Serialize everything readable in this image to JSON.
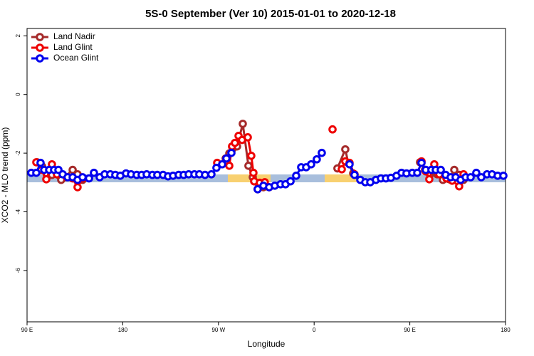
{
  "chart_data": {
    "type": "line",
    "title": "5S-0 September (Ver 10)   2015-01-01 to 2020-12-18",
    "x_label": "Longitude",
    "y_label": "XCO2 - MLO trend (ppm)",
    "xlim": [
      90,
      540
    ],
    "ylim": [
      -7.75,
      2.25
    ],
    "xticks": [
      {
        "value": 90,
        "label": "90 E"
      },
      180,
      {
        "value": 270,
        "label": "90 W"
      },
      {
        "value": 360,
        "label": "0"
      },
      {
        "value": 450,
        "label": "90 E"
      },
      {
        "value": 540,
        "label": "180"
      }
    ],
    "yticks": [
      2,
      0,
      -2,
      -4,
      -6
    ],
    "legend": "top-left",
    "series": [
      {
        "name": "Land Nadir",
        "color": "#a52a2a",
        "x": [
          99.4,
          104.1,
          108.7,
          113.4,
          122.1,
          132.9,
          137.5,
          142.2,
          null,
          276.8,
          280.2,
          283.5,
          287.5,
          292.9,
          298.2,
          302.3,
          306.9,
          312.3,
          null,
          381.9,
          389.3,
          392,
          396.7,
          null,
          459.6,
          464.3,
          469,
          475.7,
          481.1,
          487.1,
          491.8,
          496.4,
          500.5
        ],
        "values": [
          -2.31,
          -2.45,
          -2.74,
          -2.74,
          -2.91,
          -2.57,
          -2.72,
          -2.91,
          null,
          -2.18,
          -2.01,
          -1.84,
          -1.77,
          -1.0,
          -2.43,
          -2.82,
          -3.23,
          -3.16,
          null,
          -2.52,
          -1.87,
          -2.33,
          -2.69,
          null,
          -2.31,
          -2.57,
          -2.72,
          -2.72,
          -2.91,
          -2.89,
          -2.57,
          -2.74,
          -2.91
        ]
      },
      {
        "name": "Land Glint",
        "color": "#ee0000",
        "x": [
          98.7,
          103.4,
          108.1,
          113.4,
          118.1,
          127.5,
          132.9,
          137.5,
          142.2,
          null,
          268.8,
          280.2,
          282.8,
          285.5,
          288.9,
          292.2,
          297.6,
          300.9,
          302.9,
          303.6,
          308.9,
          313.6,
          317.7,
          null,
          377.3,
          null,
          386,
          389.3,
          393.3,
          398,
          null,
          461,
          465,
          468.3,
          473,
          477.7,
          484.4,
          489.8,
          496.4,
          500.5
        ],
        "values": [
          -2.31,
          -2.57,
          -2.89,
          -2.38,
          -2.72,
          -2.82,
          -2.86,
          -3.16,
          -2.86,
          null,
          -2.33,
          -2.43,
          -1.77,
          -1.65,
          -1.41,
          -1.55,
          -1.46,
          -2.09,
          -2.67,
          -2.96,
          -3.01,
          -2.99,
          -3.16,
          null,
          -1.19,
          null,
          -2.55,
          -2.28,
          -2.33,
          -2.72,
          null,
          -2.28,
          -2.62,
          -2.89,
          -2.38,
          -2.72,
          -2.86,
          -2.94,
          -3.13,
          -2.72
        ]
      },
      {
        "name": "Ocean Glint",
        "color": "#0000ee",
        "x": [
          94,
          98.7,
          102.7,
          106.1,
          110.8,
          115.4,
          119.5,
          123.5,
          128.2,
          132.9,
          137.5,
          142.2,
          148.3,
          152.9,
          158.3,
          163,
          168.3,
          173,
          177.7,
          183.1,
          187.8,
          193.1,
          197.8,
          202.5,
          207.9,
          212.5,
          217.9,
          222.6,
          227.3,
          232.6,
          237.3,
          242,
          247.4,
          252,
          257.4,
          263.4,
          268.1,
          273.5,
          277.5,
          282.2,
          null,
          306.9,
          312.3,
          317.7,
          323,
          328.4,
          333.1,
          337.8,
          343.1,
          347.8,
          352.5,
          357.2,
          362.5,
          367.2,
          null,
          393.3,
          398,
          403.4,
          408.1,
          412.8,
          418.1,
          422.8,
          427.5,
          432.2,
          437.5,
          442.2,
          446.9,
          452.3,
          457,
          461,
          465,
          470.3,
          474.4,
          479.1,
          483.7,
          488.4,
          493.1,
          497.8,
          502.5,
          507.2,
          512.5,
          517.2,
          522.6,
          527.3,
          532.6,
          538
        ],
        "values": [
          -2.67,
          -2.67,
          -2.33,
          -2.57,
          -2.57,
          -2.57,
          -2.57,
          -2.72,
          -2.82,
          -2.82,
          -2.91,
          -2.82,
          -2.86,
          -2.67,
          -2.82,
          -2.72,
          -2.72,
          -2.74,
          -2.77,
          -2.69,
          -2.72,
          -2.74,
          -2.74,
          -2.72,
          -2.74,
          -2.74,
          -2.74,
          -2.79,
          -2.77,
          -2.74,
          -2.74,
          -2.72,
          -2.72,
          -2.72,
          -2.74,
          -2.72,
          -2.5,
          -2.38,
          -2.18,
          -1.99,
          null,
          -3.23,
          -3.11,
          -3.16,
          -3.11,
          -3.06,
          -3.06,
          -2.96,
          -2.77,
          -2.48,
          -2.48,
          -2.38,
          -2.21,
          -1.99,
          null,
          -2.38,
          -2.74,
          -2.91,
          -2.99,
          -2.99,
          -2.91,
          -2.86,
          -2.86,
          -2.84,
          -2.77,
          -2.67,
          -2.69,
          -2.67,
          -2.67,
          -2.33,
          -2.57,
          -2.57,
          -2.57,
          -2.57,
          -2.74,
          -2.82,
          -2.82,
          -2.91,
          -2.82,
          -2.82,
          -2.67,
          -2.82,
          -2.72,
          -2.72,
          -2.77,
          -2.77
        ]
      }
    ]
  }
}
